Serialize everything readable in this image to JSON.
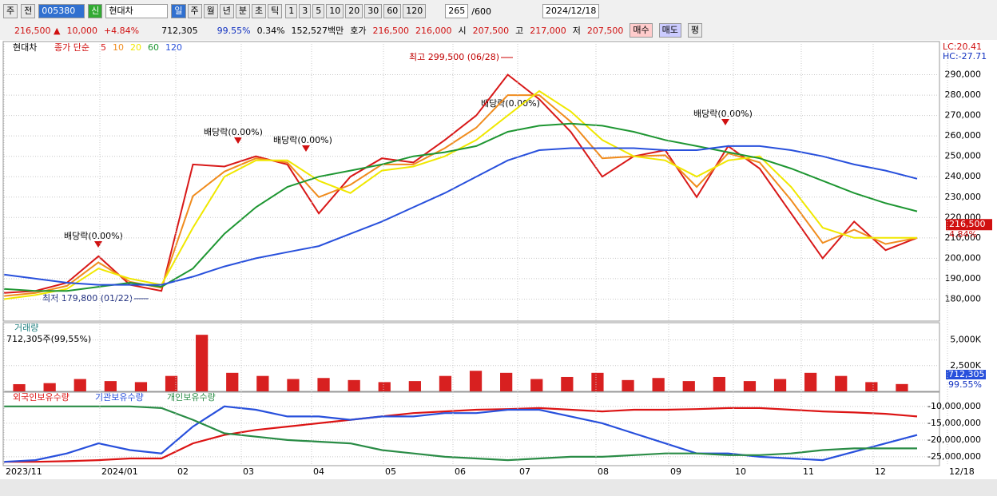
{
  "toolbar": {
    "market": "주",
    "prev": "전",
    "code": "005380",
    "badge": "신",
    "name": "현대차",
    "periods": [
      "일",
      "주",
      "월",
      "년",
      "분",
      "초",
      "틱"
    ],
    "numbers": [
      "1",
      "3",
      "5",
      "10",
      "20",
      "30",
      "60",
      "120"
    ],
    "count": "265",
    "max": "/600",
    "date": "2024/12/18"
  },
  "quote": {
    "price": "216,500 ▲",
    "change": "10,000",
    "rate": "+4.84%",
    "volume": "712,305",
    "vol_ratio": "99.55%",
    "turnover": "0.34%",
    "amount": "152,527백만",
    "ask_label": "호가",
    "ask": "216,500",
    "bid": "216,000",
    "open_label": "시",
    "open": "207,500",
    "high_label": "고",
    "high": "217,000",
    "low_label": "저",
    "low": "207,500",
    "buy": "매수",
    "sell": "매도",
    "avg": "평"
  },
  "x_labels": [
    "2023/11",
    "2024/01",
    "02",
    "03",
    "04",
    "05",
    "06",
    "07",
    "08",
    "09",
    "10",
    "11",
    "12",
    "12/18"
  ],
  "chart_data": [
    {
      "type": "line",
      "title": "현대차",
      "subtitle": "종가 단순",
      "ylim": [
        170000,
        300000
      ],
      "yticks": [
        {
          "value": 180000,
          "label": "180,000"
        },
        {
          "value": 190000,
          "label": "190,000"
        },
        {
          "value": 200000,
          "label": "200,000"
        },
        {
          "value": 210000,
          "label": "210,000"
        },
        {
          "value": 220000,
          "label": "220,000"
        },
        {
          "value": 230000,
          "label": "230,000"
        },
        {
          "value": 240000,
          "label": "240,000"
        },
        {
          "value": 250000,
          "label": "250,000"
        },
        {
          "value": 260000,
          "label": "260,000"
        },
        {
          "value": 270000,
          "label": "270,000"
        },
        {
          "value": 280000,
          "label": "280,000"
        },
        {
          "value": 290000,
          "label": "290,000"
        }
      ],
      "grid": true,
      "lc": "LC:20.41",
      "hc": "HC:-27.71",
      "last": {
        "value": 216500,
        "label": "216,500"
      },
      "last_change": "4.84%",
      "annotations": [
        "최고 299,500 (06/28)",
        "최저 179,800 (01/22)",
        "배당락(0.00%)",
        "배당락(0.00%)",
        "배당락(0.00%)",
        "배당락(0.00%)",
        "배당락(0.00%)"
      ],
      "series": [
        {
          "name": "5",
          "color": "#d81818",
          "values": [
            183000,
            184000,
            188000,
            201000,
            187000,
            184000,
            246000,
            245000,
            250000,
            246000,
            222000,
            240000,
            249000,
            247000,
            258000,
            270000,
            290000,
            278000,
            262000,
            240000,
            250000,
            253000,
            230000,
            255000,
            244000,
            222000,
            200000,
            218000,
            204000,
            210000
          ]
        },
        {
          "name": "10",
          "color": "#f08c1e",
          "values": [
            181500,
            183000,
            186500,
            198000,
            188500,
            185500,
            230500,
            242500,
            249000,
            247000,
            230000,
            236000,
            246000,
            246000,
            254000,
            264000,
            280000,
            280000,
            267000,
            249000,
            250000,
            250500,
            235000,
            251500,
            247000,
            228500,
            207500,
            214000,
            207000,
            210000
          ]
        },
        {
          "name": "20",
          "color": "#f0e800",
          "values": [
            180000,
            182000,
            185000,
            195000,
            190000,
            187000,
            215000,
            240000,
            248000,
            248000,
            238000,
            232000,
            243000,
            245000,
            250000,
            258000,
            270000,
            282000,
            272000,
            258000,
            250000,
            248000,
            240000,
            248000,
            250000,
            235000,
            215000,
            210000,
            210000,
            210000
          ]
        },
        {
          "name": "60",
          "color": "#1e9632",
          "values": [
            185000,
            184000,
            184000,
            186000,
            188000,
            186000,
            195000,
            212000,
            225000,
            235000,
            240000,
            243000,
            246000,
            250000,
            252000,
            255000,
            262000,
            265000,
            266000,
            265000,
            262000,
            258000,
            255000,
            252000,
            249000,
            244000,
            238000,
            232000,
            227000,
            223000
          ]
        },
        {
          "name": "120",
          "color": "#2850dc",
          "values": [
            192000,
            190000,
            188000,
            187000,
            187000,
            187000,
            191000,
            196000,
            200000,
            203000,
            206000,
            212000,
            218000,
            225000,
            232000,
            240000,
            248000,
            253000,
            254000,
            254000,
            254000,
            253000,
            253000,
            255000,
            255000,
            253000,
            250000,
            246000,
            243000,
            239000
          ]
        }
      ]
    },
    {
      "type": "bar",
      "title": "거래량",
      "subtitle": "712,305주(99,55%)",
      "ylim": [
        0,
        6600
      ],
      "color": "#d82020",
      "yticks": [
        {
          "value": 2500,
          "label": "2,500K"
        },
        {
          "value": 5000,
          "label": "5,000K"
        }
      ],
      "last_label": "712,305",
      "last_ratio": "99.55%",
      "values": [
        700,
        800,
        1200,
        1000,
        900,
        1500,
        5500,
        1800,
        1500,
        1200,
        1300,
        1100,
        900,
        1000,
        1500,
        2000,
        1800,
        1200,
        1400,
        1800,
        1100,
        1300,
        1000,
        1400,
        1000,
        1200,
        1800,
        1500,
        900,
        712.305
      ]
    },
    {
      "type": "line",
      "ylim": [
        -27400000,
        -6000000
      ],
      "yticks": [
        {
          "value": -10000000,
          "label": "-10,000,000"
        },
        {
          "value": -15000000,
          "label": "-15,000,000"
        },
        {
          "value": -20000000,
          "label": "-20,000,000"
        },
        {
          "value": -25000000,
          "label": "-25,000,000"
        }
      ],
      "series": [
        {
          "name": "외국인보유수량",
          "color": "#dc1414",
          "values": [
            -26500000,
            -26500000,
            -26300000,
            -26000000,
            -25500000,
            -25500000,
            -21000000,
            -18500000,
            -17000000,
            -16000000,
            -15000000,
            -14000000,
            -13000000,
            -12000000,
            -11500000,
            -11000000,
            -10800000,
            -10500000,
            -11000000,
            -11500000,
            -11000000,
            -11000000,
            -10800000,
            -10500000,
            -10500000,
            -11000000,
            -11500000,
            -11800000,
            -12200000,
            -13000000
          ]
        },
        {
          "name": "기관보유수량",
          "color": "#2850dc",
          "values": [
            -26500000,
            -26000000,
            -24000000,
            -21000000,
            -23000000,
            -24000000,
            -16000000,
            -10000000,
            -11000000,
            -13000000,
            -13000000,
            -14000000,
            -13000000,
            -13000000,
            -12000000,
            -12000000,
            -11000000,
            -11000000,
            -13000000,
            -15000000,
            -18000000,
            -21000000,
            -24000000,
            -24000000,
            -25000000,
            -25500000,
            -26000000,
            -23500000,
            -21000000,
            -18500000
          ]
        },
        {
          "name": "개인보유수량",
          "color": "#2a8c46",
          "values": [
            -10000000,
            -10000000,
            -10000000,
            -10000000,
            -10000000,
            -10500000,
            -14000000,
            -18000000,
            -19000000,
            -20000000,
            -20500000,
            -21000000,
            -23000000,
            -24000000,
            -25000000,
            -25500000,
            -26000000,
            -25500000,
            -25000000,
            -25000000,
            -24500000,
            -24000000,
            -24000000,
            -24500000,
            -24500000,
            -24000000,
            -23000000,
            -22500000,
            -22500000,
            -22500000
          ]
        }
      ]
    }
  ]
}
